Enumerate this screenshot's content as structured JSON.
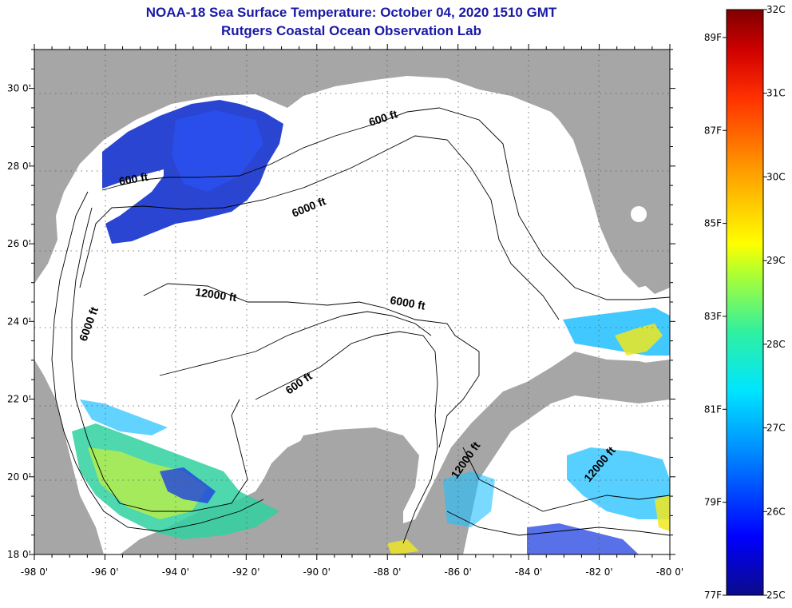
{
  "header": {
    "title": "NOAA-18 Sea Surface Temperature:  October 04, 2020 1510 GMT",
    "subtitle": "Rutgers Coastal Ocean Observation Lab"
  },
  "axes": {
    "longitude_ticks": [
      "-98 0'",
      "-96 0'",
      "-94 0'",
      "-92 0'",
      "-90 0'",
      "-88 0'",
      "-86 0'",
      "-84 0'",
      "-82 0'",
      "-80 0'"
    ],
    "latitude_ticks": [
      "30 0'",
      "28 0'",
      "26 0'",
      "24 0'",
      "22 0'",
      "20 0'",
      "18 0'"
    ],
    "lon_range": [
      -98,
      -80
    ],
    "lat_range": [
      18,
      31
    ],
    "grid": "dotted"
  },
  "bathymetry_labels": {
    "l1": "600 ft",
    "l2": "600 ft",
    "l3": "6000 ft",
    "l4": "12000 ft",
    "l5": "6000 ft",
    "l6": "6000 ft",
    "l7": "600 ft",
    "l8": "12000 ft",
    "l9": "12000 ft"
  },
  "colorbar": {
    "celsius_labels": [
      "32C",
      "31C",
      "30C",
      "29C",
      "28C",
      "27C",
      "26C",
      "25C"
    ],
    "celsius_values": [
      32,
      31,
      30,
      29,
      28,
      27,
      26,
      25
    ],
    "fahrenheit_labels": [
      "89F",
      "87F",
      "85F",
      "83F",
      "81F",
      "79F",
      "77F"
    ],
    "fahrenheit_values": [
      89,
      87,
      85,
      83,
      81,
      79,
      77
    ],
    "range_c": [
      25,
      32
    ],
    "colors": [
      "#0b0b8a",
      "#0000ff",
      "#0090ff",
      "#00e5ff",
      "#30f0a0",
      "#b0ff30",
      "#ffff00",
      "#ffa000",
      "#ff3000",
      "#d00000",
      "#800000"
    ]
  },
  "colors": {
    "land": "#a6a6a6",
    "cloud": "#ffffff",
    "title": "#1a1aa6"
  }
}
